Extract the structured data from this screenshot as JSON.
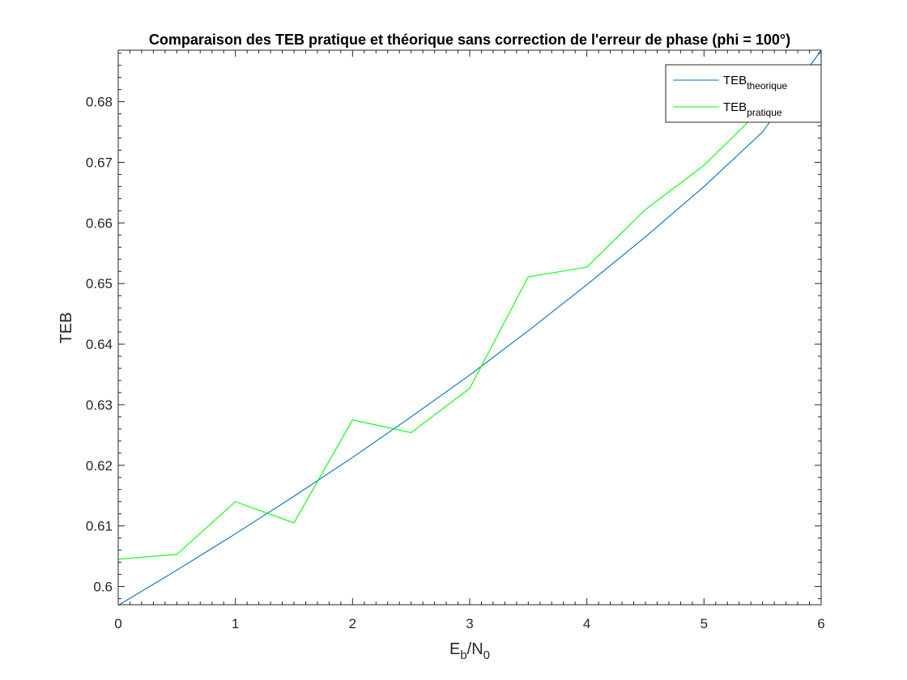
{
  "chart_data": {
    "type": "line",
    "title": "Comparaison des TEB pratique et théorique sans correction de l'erreur de phase (phi = 100°)",
    "xlabel": {
      "main": "E",
      "sub1": "b",
      "mid": "/N",
      "sub2": "0"
    },
    "ylabel": "TEB",
    "xlim": [
      0,
      6
    ],
    "ylim": [
      0.597,
      0.6885
    ],
    "xticks": [
      0,
      1,
      2,
      3,
      4,
      5,
      6
    ],
    "yticks": [
      0.6,
      0.61,
      0.62,
      0.63,
      0.64,
      0.65,
      0.66,
      0.67,
      0.68
    ],
    "grid": false,
    "legend_position": "top-right",
    "series": [
      {
        "name": {
          "main": "TEB",
          "sub": "theorique"
        },
        "color": "#0072BD",
        "x": [
          0,
          0.5,
          1,
          1.5,
          2,
          2.5,
          3,
          3.5,
          4,
          4.5,
          5,
          5.5,
          6
        ],
        "y": [
          0.5969,
          0.6027,
          0.6087,
          0.6149,
          0.6213,
          0.628,
          0.6349,
          0.6422,
          0.6498,
          0.6577,
          0.666,
          0.675,
          0.6885
        ]
      },
      {
        "name": {
          "main": "TEB",
          "sub": "pratique"
        },
        "color": "#00FF00",
        "x": [
          0,
          0.5,
          1,
          1.5,
          2,
          2.5,
          3,
          3.5,
          4,
          4.5,
          5,
          5.5,
          6
        ],
        "y": [
          0.6045,
          0.6053,
          0.614,
          0.6105,
          0.6275,
          0.6254,
          0.6327,
          0.6511,
          0.6527,
          0.6622,
          0.6695,
          0.679,
          0.6838
        ]
      }
    ]
  }
}
